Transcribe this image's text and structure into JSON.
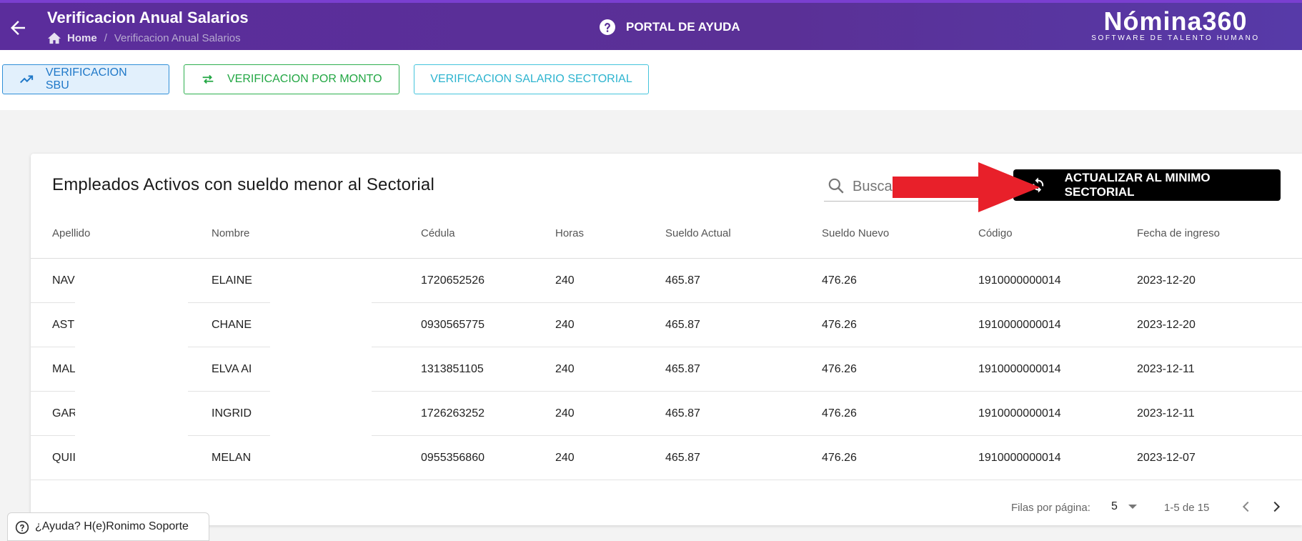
{
  "header": {
    "title": "Verificacion Anual Salarios",
    "breadcrumb_home": "Home",
    "breadcrumb_separator": "/",
    "breadcrumb_current": "Verificacion Anual Salarios",
    "help_portal": "PORTAL DE AYUDA",
    "logo_main": "Nómina360",
    "logo_sub": "SOFTWARE DE TALENTO HUMANO"
  },
  "tabs": [
    {
      "label": "VERIFICACION SBU",
      "icon": "trending-up-icon"
    },
    {
      "label": "VERIFICACION POR MONTO",
      "icon": "swap-arrows-icon"
    },
    {
      "label": "VERIFICACION SALARIO SECTORIAL"
    }
  ],
  "card": {
    "title": "Empleados Activos con sueldo menor al Sectorial",
    "search_placeholder": "Buscar",
    "update_button": "ACTUALIZAR AL MINIMO SECTORIAL"
  },
  "table": {
    "columns": [
      "Apellido",
      "Nombre",
      "Cédula",
      "Horas",
      "Sueldo Actual",
      "Sueldo Nuevo",
      "Código",
      "Fecha de ingreso"
    ],
    "rows": [
      [
        "NAV",
        "ELAINE",
        "1720652526",
        "240",
        "465.87",
        "476.26",
        "1910000000014",
        "2023-12-20"
      ],
      [
        "AST",
        "CHANE",
        "0930565775",
        "240",
        "465.87",
        "476.26",
        "1910000000014",
        "2023-12-20"
      ],
      [
        "MAL",
        "ELVA AI",
        "1313851105",
        "240",
        "465.87",
        "476.26",
        "1910000000014",
        "2023-12-11"
      ],
      [
        "GAR",
        "INGRID",
        "1726263252",
        "240",
        "465.87",
        "476.26",
        "1910000000014",
        "2023-12-11"
      ],
      [
        "QUII",
        "MELAN",
        "0955356860",
        "240",
        "465.87",
        "476.26",
        "1910000000014",
        "2023-12-07"
      ]
    ]
  },
  "pagination": {
    "rows_per_page_label": "Filas por página:",
    "rows_per_page_value": "5",
    "range": "1-5 de 15"
  },
  "help_tab": "¿Ayuda? H(e)Ronimo Soporte",
  "colors": {
    "header_purple": "#5b2d9c",
    "sbu_blue": "#1f78c8",
    "monto_green": "#23a744",
    "sector_cyan": "#2db4cf",
    "arrow_red": "#e8202a"
  }
}
